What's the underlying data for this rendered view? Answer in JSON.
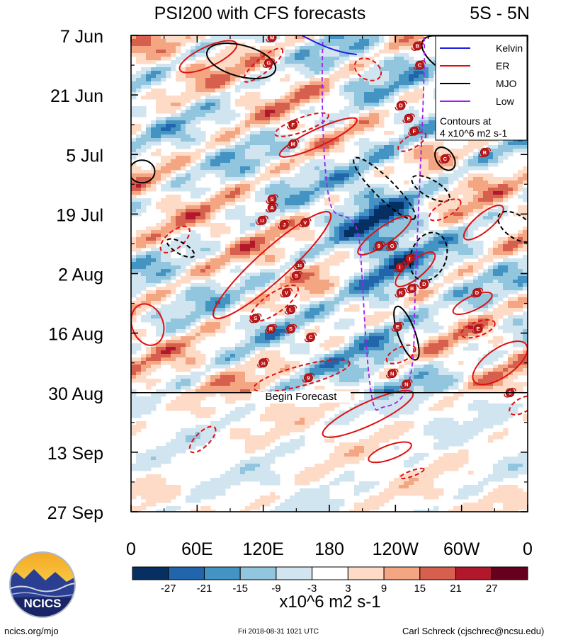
{
  "chart_data": {
    "type": "heatmap",
    "title": "PSI200 with CFS forecasts",
    "region_label": "5S - 5N",
    "x_ticks": [
      "0",
      "60E",
      "120E",
      "180",
      "120W",
      "60W",
      "0"
    ],
    "x_tick_lons": [
      0,
      60,
      120,
      180,
      240,
      300,
      360
    ],
    "y_ticks": [
      "7 Jun",
      "21 Jun",
      "5 Jul",
      "19 Jul",
      "2 Aug",
      "16 Aug",
      "30 Aug",
      "13 Sep",
      "27 Sep"
    ],
    "y_tick_days": [
      0,
      14,
      28,
      42,
      56,
      70,
      84,
      98,
      112
    ],
    "xlim": [
      0,
      360
    ],
    "ylim_days": [
      0,
      112
    ],
    "forecast_start_day": 84,
    "forecast_label": "Begin Forecast",
    "legend": [
      {
        "name": "Kelvin",
        "color": "#1f1fe0"
      },
      {
        "name": "ER",
        "color": "#e01010"
      },
      {
        "name": "MJO",
        "color": "#000000"
      },
      {
        "name": "Low",
        "color": "#a020f0"
      }
    ],
    "legend_note_1": "Contours at",
    "legend_note_2": "4 x10^6 m2 s-1",
    "colorbar": {
      "labels": [
        "-27",
        "-21",
        "-15",
        "-9",
        "-3",
        "3",
        "9",
        "15",
        "21",
        "27"
      ],
      "levels": [
        -27,
        -21,
        -15,
        -9,
        -3,
        3,
        9,
        15,
        21,
        27
      ],
      "colors": [
        "#053061",
        "#2166ac",
        "#4393c3",
        "#92c5de",
        "#d1e5f0",
        "#ffffff",
        "#fddbc7",
        "#f4a582",
        "#d6604d",
        "#b2182b",
        "#67001f"
      ],
      "units": "x10^6 m2 s-1"
    },
    "storms": [
      {
        "lon": 128,
        "day": 0.5,
        "label": "M"
      },
      {
        "lon": 125,
        "day": 6.5,
        "label": "G"
      },
      {
        "lon": 260,
        "day": 2.5,
        "label": "B"
      },
      {
        "lon": 262,
        "day": 7,
        "label": "C"
      },
      {
        "lon": 147,
        "day": 21,
        "label": "F"
      },
      {
        "lon": 147,
        "day": 25.5,
        "label": "M"
      },
      {
        "lon": 245,
        "day": 16.5,
        "label": "D"
      },
      {
        "lon": 252,
        "day": 19.5,
        "label": "E"
      },
      {
        "lon": 257,
        "day": 22.5,
        "label": "F"
      },
      {
        "lon": 285,
        "day": 29,
        "label": "C"
      },
      {
        "lon": 321,
        "day": 27.5,
        "label": "B"
      },
      {
        "lon": 128,
        "day": 38.5,
        "label": "S"
      },
      {
        "lon": 128,
        "day": 40.5,
        "label": "A"
      },
      {
        "lon": 119,
        "day": 43.5,
        "label": "13"
      },
      {
        "lon": 139,
        "day": 44.5,
        "label": "J"
      },
      {
        "lon": 158,
        "day": 44,
        "label": "V"
      },
      {
        "lon": 225,
        "day": 49.5,
        "label": "9"
      },
      {
        "lon": 237,
        "day": 49.5,
        "label": "G"
      },
      {
        "lon": 253,
        "day": 52.5,
        "label": "I"
      },
      {
        "lon": 244,
        "day": 54.5,
        "label": "I"
      },
      {
        "lon": 153,
        "day": 54,
        "label": "16"
      },
      {
        "lon": 150,
        "day": 56.5,
        "label": "S"
      },
      {
        "lon": 141,
        "day": 60.5,
        "label": "V"
      },
      {
        "lon": 245,
        "day": 60.5,
        "label": "K"
      },
      {
        "lon": 255,
        "day": 59.5,
        "label": "B"
      },
      {
        "lon": 266,
        "day": 58.5,
        "label": "D"
      },
      {
        "lon": 314,
        "day": 60.5,
        "label": "D"
      },
      {
        "lon": 145,
        "day": 64.5,
        "label": "L"
      },
      {
        "lon": 113,
        "day": 66.5,
        "label": "S"
      },
      {
        "lon": 127,
        "day": 69,
        "label": "R"
      },
      {
        "lon": 145,
        "day": 69,
        "label": "S"
      },
      {
        "lon": 163,
        "day": 71,
        "label": "C"
      },
      {
        "lon": 242,
        "day": 68.5,
        "label": "E"
      },
      {
        "lon": 315,
        "day": 69,
        "label": "E"
      },
      {
        "lon": 120,
        "day": 77,
        "label": "24"
      },
      {
        "lon": 161,
        "day": 80.5,
        "label": "9"
      },
      {
        "lon": 237,
        "day": 79.5,
        "label": "N"
      },
      {
        "lon": 250,
        "day": 82,
        "label": "N"
      },
      {
        "lon": 344,
        "day": 84,
        "label": "6"
      }
    ]
  },
  "footer": {
    "url": "ncics.org/mjo",
    "timestamp": "Fri 2018-08-31 1021 UTC",
    "credit": "Carl Schreck (cjschrec@ncsu.edu)"
  },
  "logo": {
    "text": "NCICS"
  }
}
